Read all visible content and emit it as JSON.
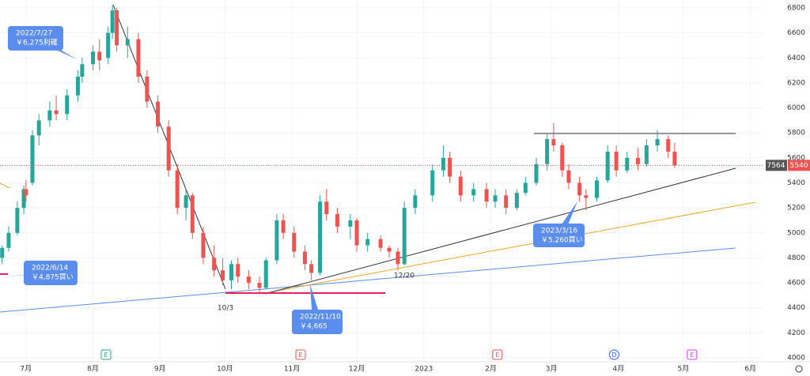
{
  "chart_data": {
    "type": "candlestick",
    "symbol": "7564",
    "last_price": 5540,
    "up_color": "#26a69a",
    "down_color": "#ef5350",
    "x": [
      "2022-06-20",
      "2022-06-23",
      "2022-06-27",
      "2022-06-30",
      "2022-07-01",
      "2022-07-04",
      "2022-07-07",
      "2022-07-12",
      "2022-07-15",
      "2022-07-20",
      "2022-07-25",
      "2022-07-27",
      "2022-08-01",
      "2022-08-04",
      "2022-08-08",
      "2022-08-10",
      "2022-08-12",
      "2022-08-17",
      "2022-08-22",
      "2022-08-26",
      "2022-08-31",
      "2022-09-05",
      "2022-09-09",
      "2022-09-13",
      "2022-09-16",
      "2022-09-21",
      "2022-09-26",
      "2022-09-30",
      "2022-10-04",
      "2022-10-07",
      "2022-10-12",
      "2022-10-17",
      "2022-10-20",
      "2022-10-25",
      "2022-10-28",
      "2022-11-02",
      "2022-11-07",
      "2022-11-10",
      "2022-11-14",
      "2022-11-17",
      "2022-11-22",
      "2022-11-28",
      "2022-12-01",
      "2022-12-06",
      "2022-12-12",
      "2022-12-16",
      "2022-12-20",
      "2022-12-23",
      "2022-12-28",
      "2023-01-05",
      "2023-01-10",
      "2023-01-13",
      "2023-01-18",
      "2023-01-24",
      "2023-01-30",
      "2023-02-03",
      "2023-02-08",
      "2023-02-13",
      "2023-02-17",
      "2023-02-22",
      "2023-02-27",
      "2023-03-02",
      "2023-03-06",
      "2023-03-09",
      "2023-03-14",
      "2023-03-17",
      "2023-03-22",
      "2023-03-27",
      "2023-03-31",
      "2023-04-05",
      "2023-04-10",
      "2023-04-14",
      "2023-04-19",
      "2023-04-24",
      "2023-04-27"
    ],
    "open": [
      4800,
      4880,
      5000,
      5200,
      5350,
      5400,
      5780,
      5900,
      5980,
      5950,
      6100,
      6250,
      6350,
      6450,
      6400,
      6600,
      6780,
      6500,
      6550,
      6250,
      6050,
      5850,
      5500,
      5200,
      5300,
      5000,
      4800,
      4700,
      4620,
      4750,
      4650,
      4600,
      4560,
      4780,
      5100,
      5000,
      4850,
      4750,
      4680,
      5250,
      5150,
      5050,
      5100,
      4900,
      4950,
      4880,
      4850,
      4750,
      5200,
      5300,
      5500,
      5600,
      5450,
      5300,
      5350,
      5250,
      5300,
      5200,
      5320,
      5400,
      5550,
      5750,
      5700,
      5500,
      5400,
      5300,
      5280,
      5420,
      5650,
      5500,
      5600,
      5550,
      5700,
      5750,
      5650
    ],
    "high": [
      4900,
      5050,
      5250,
      5380,
      5420,
      5820,
      5950,
      6050,
      6100,
      6150,
      6300,
      6400,
      6500,
      6550,
      6650,
      6820,
      6800,
      6650,
      6600,
      6300,
      6100,
      5900,
      5550,
      5350,
      5320,
      5050,
      4900,
      4800,
      4780,
      4800,
      4700,
      4650,
      4800,
      5150,
      5150,
      5050,
      4900,
      4780,
      5300,
      5350,
      5200,
      5150,
      5120,
      5000,
      4980,
      4900,
      4880,
      5250,
      5350,
      5550,
      5700,
      5650,
      5500,
      5400,
      5400,
      5350,
      5350,
      5350,
      5450,
      5600,
      5800,
      5880,
      5720,
      5550,
      5450,
      5350,
      5450,
      5700,
      5700,
      5650,
      5680,
      5750,
      5820,
      5780,
      5720
    ],
    "low": [
      4750,
      4850,
      4980,
      5150,
      5250,
      5380,
      5700,
      5850,
      5900,
      5900,
      6050,
      6200,
      6300,
      6300,
      6350,
      6550,
      6450,
      6400,
      6200,
      6000,
      5800,
      5450,
      5150,
      5100,
      4950,
      4750,
      4650,
      4580,
      4550,
      4600,
      4550,
      4520,
      4550,
      4750,
      4950,
      4800,
      4700,
      4620,
      4660,
      5100,
      5000,
      4950,
      4850,
      4850,
      4850,
      4800,
      4700,
      4740,
      5150,
      5250,
      5450,
      5400,
      5250,
      5250,
      5200,
      5200,
      5150,
      5180,
      5300,
      5380,
      5500,
      5650,
      5450,
      5350,
      5250,
      5180,
      5250,
      5400,
      5450,
      5480,
      5500,
      5530,
      5650,
      5600,
      5520
    ],
    "close": [
      4880,
      5000,
      5200,
      5350,
      5300,
      5780,
      5900,
      5980,
      5950,
      6100,
      6250,
      6350,
      6450,
      6380,
      6600,
      6780,
      6500,
      6550,
      6250,
      6050,
      5850,
      5500,
      5200,
      5300,
      5000,
      4800,
      4700,
      4620,
      4750,
      4650,
      4600,
      4560,
      4780,
      5100,
      5000,
      4850,
      4750,
      4680,
      5250,
      5150,
      5050,
      5100,
      4900,
      4950,
      4880,
      4850,
      4750,
      5200,
      5300,
      5500,
      5600,
      5450,
      5300,
      5350,
      5250,
      5300,
      5200,
      5320,
      5400,
      5550,
      5750,
      5700,
      5500,
      5400,
      5300,
      5280,
      5420,
      5650,
      5500,
      5600,
      5550,
      5700,
      5750,
      5650,
      5540
    ],
    "xlim": [
      "2022-06-19",
      "2023-06-07"
    ],
    "xticks": [
      {
        "value": "2022-07-01",
        "label": "7月"
      },
      {
        "value": "2022-08-01",
        "label": "8月"
      },
      {
        "value": "2022-09-01",
        "label": "9月"
      },
      {
        "value": "2022-10-01",
        "label": "10月"
      },
      {
        "value": "2022-11-01",
        "label": "11月"
      },
      {
        "value": "2022-12-01",
        "label": "12月"
      },
      {
        "value": "2023-01-01",
        "label": "2023"
      },
      {
        "value": "2023-02-01",
        "label": "2月"
      },
      {
        "value": "2023-03-01",
        "label": "3月"
      },
      {
        "value": "2023-04-01",
        "label": "4月"
      },
      {
        "value": "2023-05-01",
        "label": "5月"
      },
      {
        "value": "2023-06-01",
        "label": "6月"
      }
    ],
    "ylim": [
      4000,
      6800
    ],
    "yticks": [
      4000,
      4200,
      4400,
      4600,
      4800,
      5000,
      5200,
      5400,
      5600,
      5800,
      6000,
      6200,
      6400,
      6600,
      6800
    ],
    "events": [
      {
        "date": "2022-08-07",
        "label": "E"
      },
      {
        "date": "2022-11-05",
        "label": "E"
      },
      {
        "date": "2023-02-04",
        "label": "E"
      },
      {
        "date": "2023-03-30",
        "label": "D"
      },
      {
        "date": "2023-05-05",
        "label": "E"
      }
    ],
    "annotations": [
      {
        "lines": [
          "2022/7/27",
          "￥6,275利確"
        ]
      },
      {
        "lines": [
          "2022/6/14",
          "￥4,875買い"
        ]
      },
      {
        "lines": [
          "2022/11/10",
          "￥4,665"
        ]
      },
      {
        "lines": [
          "2023/3/16",
          "￥5,260買い"
        ]
      }
    ],
    "labels": [
      "10/3",
      "12/20"
    ]
  }
}
